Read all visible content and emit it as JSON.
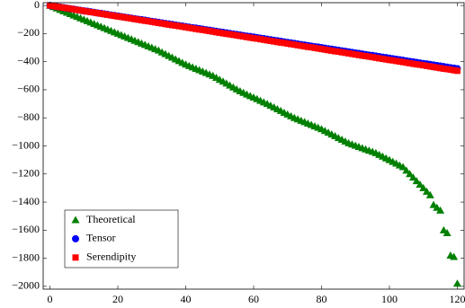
{
  "chart_data": {
    "type": "scatter",
    "x": [
      0,
      1,
      2,
      3,
      4,
      5,
      6,
      7,
      8,
      9,
      10,
      11,
      12,
      13,
      14,
      15,
      16,
      17,
      18,
      19,
      20,
      21,
      22,
      23,
      24,
      25,
      26,
      27,
      28,
      29,
      30,
      31,
      32,
      33,
      34,
      35,
      36,
      37,
      38,
      39,
      40,
      41,
      42,
      43,
      44,
      45,
      46,
      47,
      48,
      49,
      50,
      51,
      52,
      53,
      54,
      55,
      56,
      57,
      58,
      59,
      60,
      61,
      62,
      63,
      64,
      65,
      66,
      67,
      68,
      69,
      70,
      71,
      72,
      73,
      74,
      75,
      76,
      77,
      78,
      79,
      80,
      81,
      82,
      83,
      84,
      85,
      86,
      87,
      88,
      89,
      90,
      91,
      92,
      93,
      94,
      95,
      96,
      97,
      98,
      99,
      100,
      101,
      102,
      103,
      104,
      105,
      106,
      107,
      108,
      109,
      110,
      111,
      112,
      113,
      114,
      115,
      116,
      117,
      118,
      119,
      120
    ],
    "series": [
      {
        "name": "Theoretical",
        "color": "#008000",
        "marker": "triangle",
        "values": [
          0,
          -10,
          -20,
          -30,
          -40,
          -50,
          -60,
          -70,
          -80,
          -90,
          -100,
          -110,
          -120,
          -130,
          -140,
          -150,
          -160,
          -170,
          -180,
          -190,
          -200,
          -210,
          -220,
          -230,
          -240,
          -250,
          -260,
          -270,
          -280,
          -290,
          -300,
          -310,
          -320,
          -333,
          -345,
          -358,
          -370,
          -383,
          -395,
          -408,
          -420,
          -430,
          -440,
          -450,
          -460,
          -470,
          -480,
          -490,
          -500,
          -514,
          -528,
          -541,
          -555,
          -569,
          -583,
          -596,
          -610,
          -621,
          -633,
          -644,
          -655,
          -666,
          -678,
          -689,
          -700,
          -713,
          -725,
          -738,
          -750,
          -763,
          -775,
          -788,
          -800,
          -810,
          -820,
          -830,
          -840,
          -850,
          -860,
          -870,
          -880,
          -893,
          -905,
          -918,
          -930,
          -943,
          -955,
          -968,
          -980,
          -989,
          -998,
          -1006,
          -1015,
          -1024,
          -1033,
          -1041,
          -1050,
          -1063,
          -1075,
          -1088,
          -1100,
          -1113,
          -1125,
          -1138,
          -1150,
          -1175,
          -1200,
          -1225,
          -1250,
          -1275,
          -1300,
          -1325,
          -1350,
          -1420,
          -1440,
          -1460,
          -1600,
          -1620,
          -1780,
          -1790,
          -1980
        ]
      },
      {
        "name": "Tensor",
        "color": "#0000ff",
        "marker": "circle",
        "values": [
          0,
          -4,
          -8,
          -11,
          -15,
          -19,
          -23,
          -26,
          -30,
          -34,
          -38,
          -41,
          -45,
          -49,
          -53,
          -56,
          -60,
          -64,
          -68,
          -71,
          -75,
          -79,
          -83,
          -86,
          -90,
          -94,
          -98,
          -101,
          -105,
          -109,
          -113,
          -116,
          -120,
          -124,
          -128,
          -131,
          -135,
          -139,
          -143,
          -146,
          -150,
          -154,
          -158,
          -161,
          -165,
          -169,
          -173,
          -176,
          -180,
          -184,
          -188,
          -191,
          -195,
          -199,
          -203,
          -206,
          -210,
          -214,
          -218,
          -221,
          -225,
          -229,
          -233,
          -236,
          -240,
          -244,
          -248,
          -251,
          -255,
          -259,
          -263,
          -266,
          -270,
          -274,
          -278,
          -281,
          -285,
          -289,
          -293,
          -296,
          -300,
          -304,
          -308,
          -311,
          -315,
          -319,
          -323,
          -326,
          -330,
          -334,
          -338,
          -341,
          -345,
          -349,
          -353,
          -356,
          -360,
          -364,
          -368,
          -371,
          -375,
          -379,
          -383,
          -386,
          -390,
          -394,
          -398,
          -401,
          -405,
          -409,
          -413,
          -416,
          -420,
          -424,
          -428,
          -431,
          -435,
          -439,
          -443,
          -446,
          -450
        ]
      },
      {
        "name": "Serendipity",
        "color": "#ff0000",
        "marker": "square",
        "values": [
          0,
          -4,
          -8,
          -12,
          -16,
          -19,
          -23,
          -27,
          -31,
          -35,
          -39,
          -43,
          -47,
          -50,
          -54,
          -58,
          -62,
          -66,
          -70,
          -74,
          -78,
          -81,
          -85,
          -89,
          -93,
          -97,
          -101,
          -105,
          -109,
          -112,
          -116,
          -120,
          -124,
          -128,
          -132,
          -136,
          -140,
          -143,
          -147,
          -151,
          -155,
          -159,
          -163,
          -167,
          -171,
          -174,
          -178,
          -182,
          -186,
          -190,
          -194,
          -198,
          -202,
          -205,
          -209,
          -213,
          -217,
          -221,
          -225,
          -229,
          -233,
          -236,
          -240,
          -244,
          -248,
          -252,
          -256,
          -260,
          -264,
          -267,
          -271,
          -275,
          -279,
          -283,
          -287,
          -291,
          -295,
          -298,
          -302,
          -306,
          -310,
          -314,
          -318,
          -322,
          -326,
          -329,
          -333,
          -337,
          -341,
          -345,
          -349,
          -353,
          -357,
          -360,
          -364,
          -368,
          -372,
          -376,
          -380,
          -384,
          -388,
          -391,
          -395,
          -399,
          -403,
          -407,
          -411,
          -415,
          -419,
          -422,
          -426,
          -430,
          -434,
          -438,
          -442,
          -446,
          -450,
          -453,
          -457,
          -461,
          -465
        ]
      }
    ],
    "xlim": [
      -2,
      122
    ],
    "ylim": [
      -2020,
      20
    ],
    "xticks": [
      0,
      20,
      40,
      60,
      80,
      100,
      120
    ],
    "yticks": [
      {
        "value": -2000,
        "label": "−2000"
      },
      {
        "value": -1800,
        "label": "−1800"
      },
      {
        "value": -1600,
        "label": "−1600"
      },
      {
        "value": -1400,
        "label": "−1400"
      },
      {
        "value": -1200,
        "label": "−1200"
      },
      {
        "value": -1000,
        "label": "−1000"
      },
      {
        "value": -800,
        "label": "−800"
      },
      {
        "value": -600,
        "label": "−600"
      },
      {
        "value": -400,
        "label": "−400"
      },
      {
        "value": -200,
        "label": "−200"
      },
      0
    ],
    "legend": "lower left",
    "grid": false
  }
}
